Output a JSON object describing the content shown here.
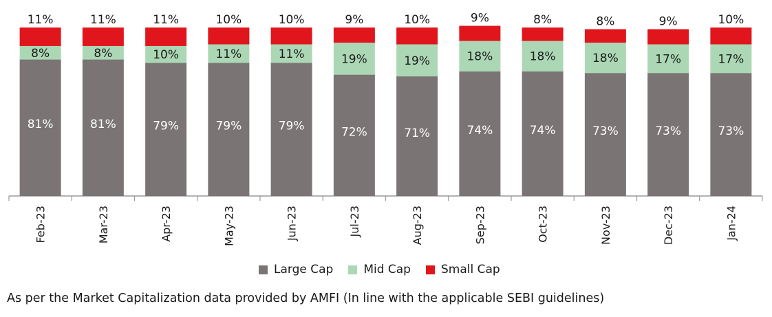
{
  "chart_data": {
    "type": "bar",
    "stacked": true,
    "categories": [
      "Feb-23",
      "Mar-23",
      "Apr-23",
      "May-23",
      "Jun-23",
      "Jul-23",
      "Aug-23",
      "Sep-23",
      "Oct-23",
      "Nov-23",
      "Dec-23",
      "Jan-24"
    ],
    "series": [
      {
        "name": "Large Cap",
        "color": "#7a7574",
        "values": [
          81,
          81,
          79,
          79,
          79,
          72,
          71,
          74,
          74,
          73,
          73,
          73
        ]
      },
      {
        "name": "Mid Cap",
        "color": "#acd7b5",
        "values": [
          8,
          8,
          10,
          11,
          11,
          19,
          19,
          18,
          18,
          18,
          17,
          17
        ]
      },
      {
        "name": "Small Cap",
        "color": "#e0161c",
        "values": [
          11,
          11,
          11,
          10,
          10,
          9,
          10,
          9,
          8,
          8,
          9,
          10
        ]
      }
    ],
    "value_suffix": "%",
    "ylim": [
      0,
      100
    ],
    "grid": false,
    "legend_position": "bottom"
  },
  "footnote": "As per the Market Capitalization data provided by AMFI (In line with the applicable SEBI guidelines)"
}
